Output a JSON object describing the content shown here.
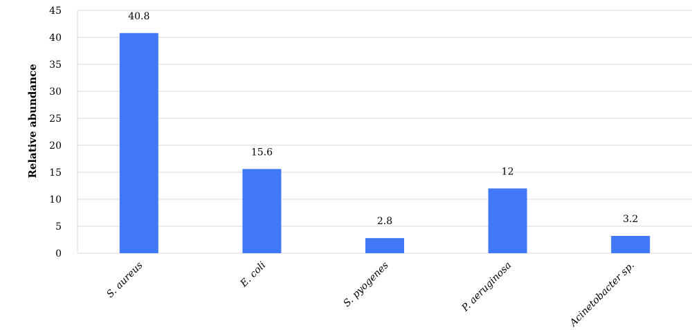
{
  "chart_data": {
    "type": "bar",
    "title": "",
    "xlabel": "",
    "ylabel": "Relative abundance",
    "categories": [
      "S. aureus",
      "E. coli",
      "S. pyogenes",
      "P. aeruginosa",
      "Acinetobacter sp."
    ],
    "values": [
      40.8,
      15.6,
      2.8,
      12,
      3.2
    ],
    "data_labels": [
      "40.8",
      "15.6",
      "2.8",
      "12",
      "3.2"
    ],
    "ylim": [
      0,
      45
    ],
    "yticks": [
      0,
      5,
      10,
      15,
      20,
      25,
      30,
      35,
      40,
      45
    ],
    "grid": true,
    "legend": "none",
    "bar_color": "#4178f6"
  }
}
